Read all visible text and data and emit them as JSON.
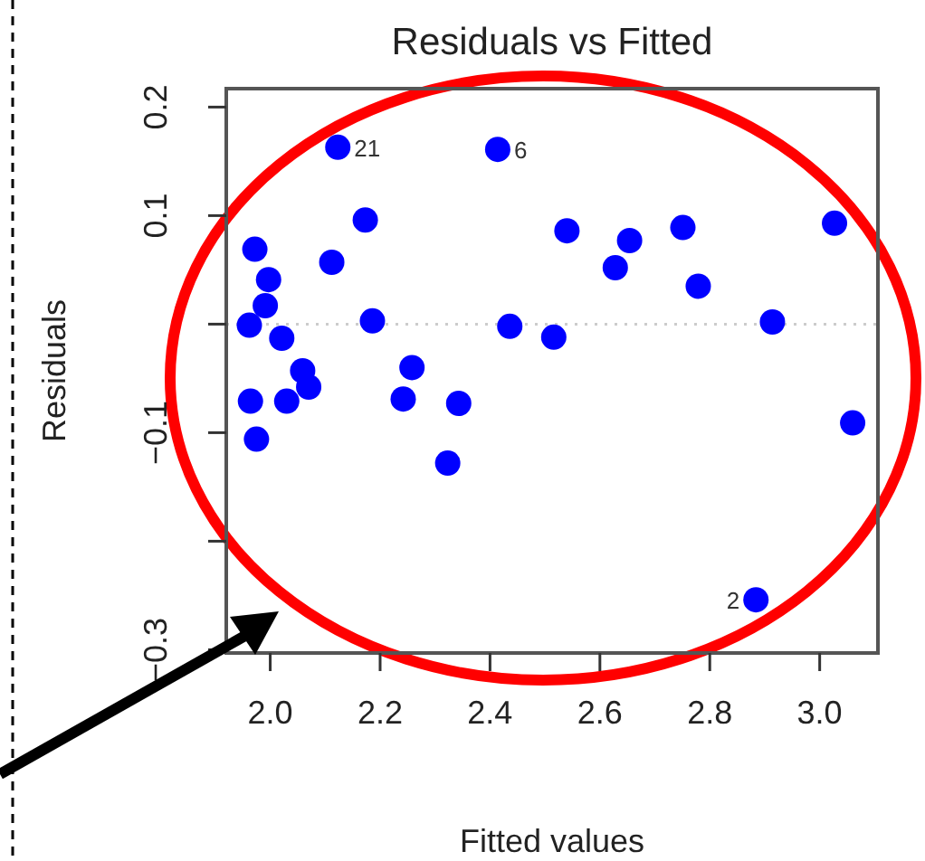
{
  "chart_data": {
    "type": "scatter",
    "title": "Residuals vs Fitted",
    "xlabel": "Fitted values",
    "ylabel": "Residuals",
    "xlim": [
      1.92,
      3.106
    ],
    "ylim": [
      -0.303,
      0.217
    ],
    "xticks": [
      {
        "value": 2,
        "label": "2.0"
      },
      2.2,
      2.4,
      2.6,
      2.8,
      {
        "value": 3,
        "label": "3.0"
      }
    ],
    "yticks": [
      {
        "value": -0.3,
        "label": "−0.3"
      },
      {
        "value": -0.2,
        "label": null
      },
      {
        "value": -0.1,
        "label": "−0.1"
      },
      {
        "value": 0,
        "label": null
      },
      0.1,
      0.2
    ],
    "marker": "circle",
    "grid": false,
    "ref_lines": [
      {
        "axis": "y",
        "value": 0,
        "color": "#cccccc",
        "line_style": "dotted"
      }
    ],
    "series": [
      {
        "color": "#0000ff",
        "x": [
          2.123,
          2.414,
          2.173,
          1.972,
          2.112,
          1.997,
          1.991,
          1.962,
          2.186,
          2.021,
          2.059,
          2.07,
          1.964,
          2.03,
          1.975,
          2.258,
          2.242,
          2.343,
          2.323,
          2.436,
          2.516,
          2.54,
          2.628,
          2.654,
          2.751,
          2.779,
          3.027,
          2.914,
          3.06,
          2.884
        ],
        "values": [
          0.163,
          0.161,
          0.096,
          0.069,
          0.057,
          0.041,
          0.017,
          -0.001,
          0.003,
          -0.013,
          -0.043,
          -0.058,
          -0.071,
          -0.071,
          -0.106,
          -0.04,
          -0.069,
          -0.073,
          -0.128,
          -0.002,
          -0.012,
          0.086,
          0.052,
          0.077,
          0.089,
          0.035,
          0.093,
          0.002,
          -0.091,
          -0.254
        ]
      }
    ],
    "annotations": [
      {
        "text": "21",
        "x": 2.123,
        "y": 0.163
      },
      {
        "text": "6",
        "x": 2.414,
        "y": 0.161
      },
      {
        "text": "2",
        "x": 2.884,
        "y": -0.254
      }
    ]
  }
}
